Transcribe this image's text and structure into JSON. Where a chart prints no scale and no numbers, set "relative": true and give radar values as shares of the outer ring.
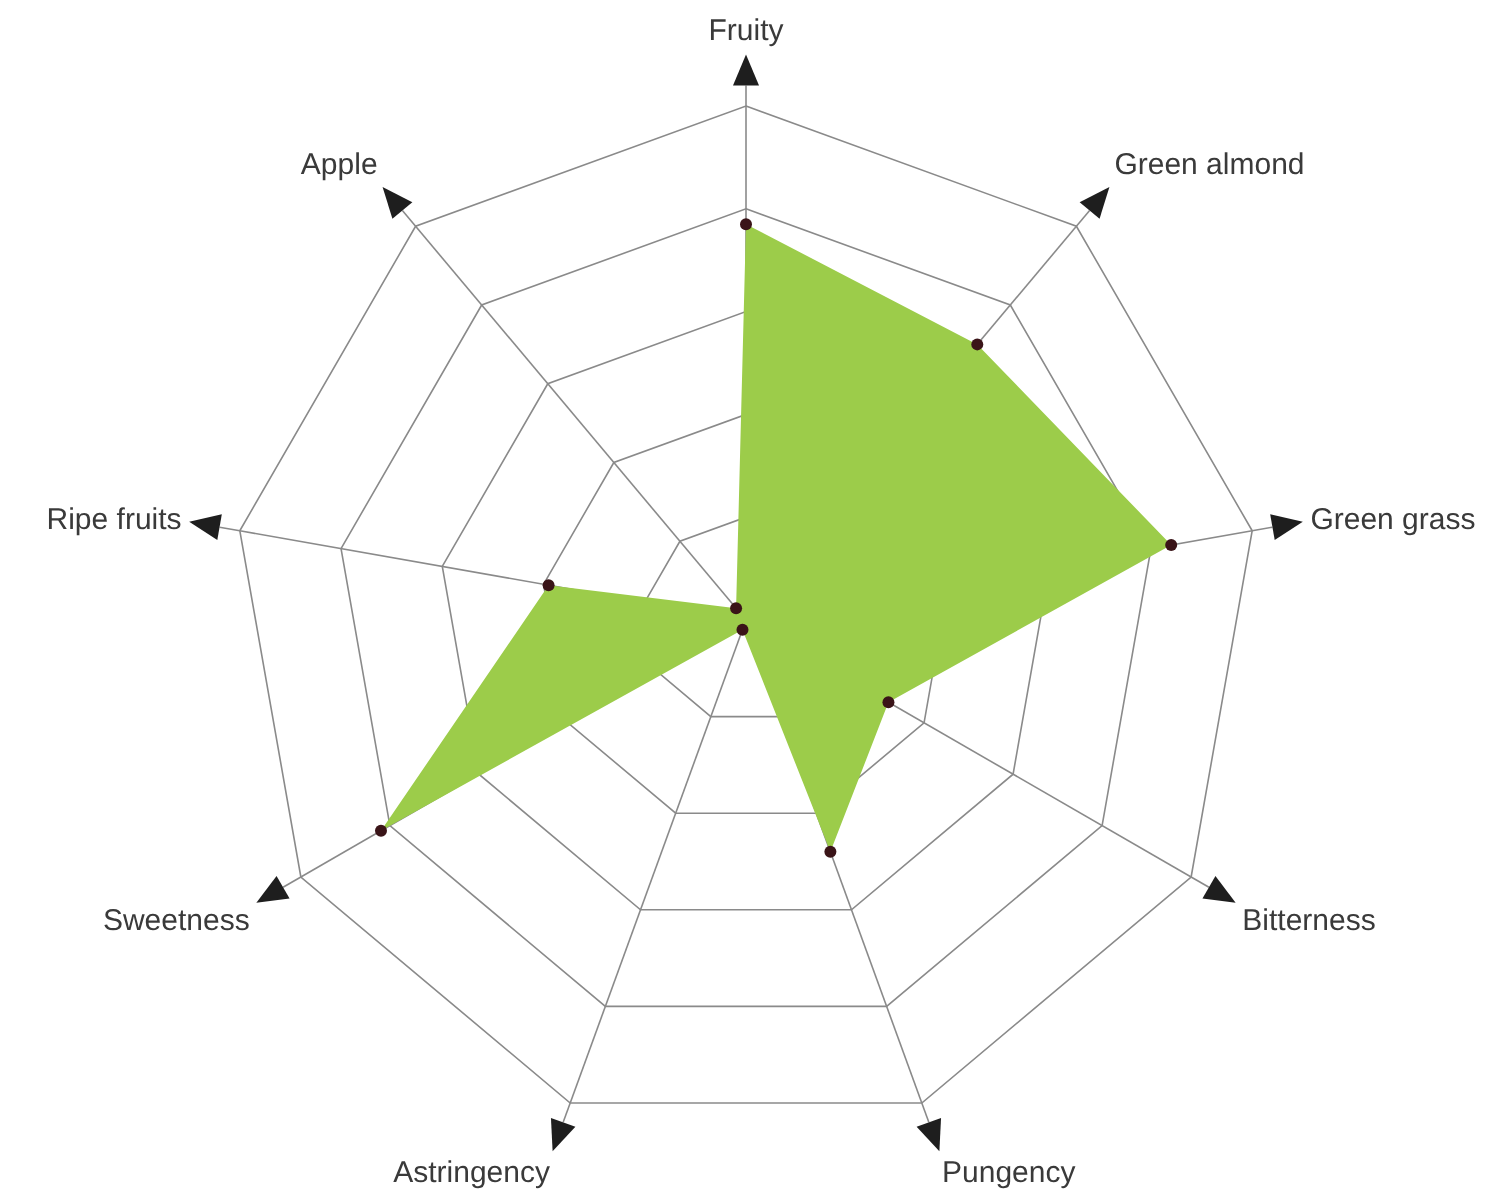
{
  "chart_data": {
    "type": "radar",
    "categories": [
      "Fruity",
      "Green almond",
      "Green grass",
      "Bitterness",
      "Pungency",
      "Astringency",
      "Sweetness",
      "Ripe fruits",
      "Apple"
    ],
    "series": [
      {
        "color": "#9ccc4a",
        "values": [
          0.77,
          0.7,
          0.84,
          0.32,
          0.48,
          0.02,
          0.82,
          0.39,
          0.03
        ]
      }
    ],
    "relative": true,
    "grid": true,
    "marker": "circle"
  }
}
